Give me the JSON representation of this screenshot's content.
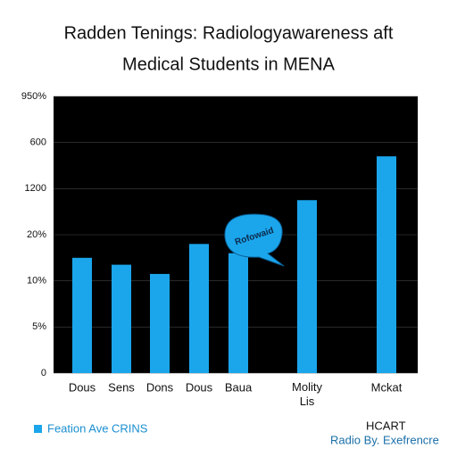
{
  "chart_data": {
    "type": "bar",
    "title": [
      "Radden Tenings: Radiologyawareness aft",
      "Medical Students in MENA"
    ],
    "categories": [
      "Dous",
      "Sens",
      "Dons",
      "Dous",
      "Baua",
      "Molity\nLis",
      "Mckat"
    ],
    "values": [
      2.5,
      2.35,
      2.15,
      2.8,
      2.6,
      3.75,
      4.7
    ],
    "color": "#1ba6ec",
    "ylim": [
      0,
      6
    ],
    "yticks": [
      {
        "value": 0,
        "label": "0"
      },
      {
        "value": 1,
        "label": "5%"
      },
      {
        "value": 2,
        "label": "10%"
      },
      {
        "value": 3,
        "label": "20%"
      },
      {
        "value": 4,
        "label": "1200"
      },
      {
        "value": 5,
        "label": "600"
      },
      {
        "value": 6,
        "label": "950%"
      }
    ],
    "grid": true,
    "annotation": "Rofowaid",
    "legend": "Feation Ave CRINS",
    "source": [
      "HCART",
      "Radio By. Exefrencre"
    ]
  }
}
